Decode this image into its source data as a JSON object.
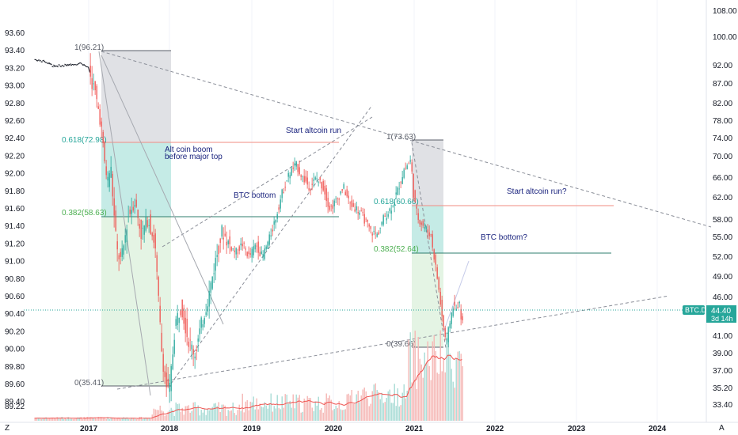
{
  "chart_data": {
    "type": "candlestick",
    "symbol": "BTC.D",
    "last_price": "44.40",
    "countdown": "3d 14h",
    "left_axis_ticks": [
      "93.60",
      "93.40",
      "93.20",
      "93.00",
      "92.80",
      "92.60",
      "92.40",
      "92.20",
      "92.00",
      "91.80",
      "91.60",
      "91.40",
      "91.20",
      "91.00",
      "90.80",
      "90.60",
      "90.40",
      "90.20",
      "90.00",
      "89.80",
      "89.60",
      "89.40",
      "89.22"
    ],
    "right_axis_ticks": [
      "108.00",
      "100.00",
      "92.00",
      "87.00",
      "82.00",
      "78.00",
      "74.00",
      "70.00",
      "66.00",
      "62.00",
      "58.00",
      "55.00",
      "52.00",
      "49.00",
      "46.00",
      "41.00",
      "39.00",
      "37.00",
      "35.20",
      "33.40"
    ],
    "x_ticks": [
      "2017",
      "2018",
      "2019",
      "2020",
      "2021",
      "2022",
      "2023",
      "2024"
    ],
    "axis_corner_left": "Z",
    "axis_corner_right": "A",
    "price_series": [
      [
        "2016-05-01",
        93.3
      ],
      [
        "2016-06-15",
        93.28
      ],
      [
        "2016-08-01",
        93.22
      ],
      [
        "2016-10-01",
        93.24
      ],
      [
        "2016-12-01",
        93.26
      ],
      [
        "2017-01-01",
        93.2
      ],
      [
        "2017-02-01",
        92.95
      ],
      [
        "2017-03-01",
        92.6
      ],
      [
        "2017-03-15",
        92.2
      ],
      [
        "2017-04-01",
        91.9
      ],
      [
        "2017-04-15",
        92.1
      ],
      [
        "2017-05-01",
        91.5
      ],
      [
        "2017-05-15",
        91.1
      ],
      [
        "2017-06-01",
        91.0
      ],
      [
        "2017-06-15",
        91.2
      ],
      [
        "2017-07-01",
        91.5
      ],
      [
        "2017-08-01",
        91.7
      ],
      [
        "2017-09-01",
        91.3
      ],
      [
        "2017-10-01",
        91.5
      ],
      [
        "2017-11-01",
        91.2
      ],
      [
        "2017-12-01",
        90.0
      ],
      [
        "2017-12-20",
        89.6
      ],
      [
        "2018-01-05",
        89.5
      ],
      [
        "2018-02-01",
        90.3
      ],
      [
        "2018-03-01",
        90.5
      ],
      [
        "2018-04-01",
        90.1
      ],
      [
        "2018-05-01",
        89.95
      ],
      [
        "2018-06-01",
        90.3
      ],
      [
        "2018-07-01",
        90.6
      ],
      [
        "2018-08-01",
        91.0
      ],
      [
        "2018-09-01",
        91.35
      ],
      [
        "2018-10-01",
        91.2
      ],
      [
        "2018-11-01",
        91.1
      ],
      [
        "2018-12-01",
        91.2
      ],
      [
        "2019-01-01",
        91.05
      ],
      [
        "2019-02-01",
        91.2
      ],
      [
        "2019-03-01",
        91.05
      ],
      [
        "2019-04-01",
        91.25
      ],
      [
        "2019-05-01",
        91.5
      ],
      [
        "2019-06-01",
        91.8
      ],
      [
        "2019-07-01",
        92.0
      ],
      [
        "2019-08-01",
        92.1
      ],
      [
        "2019-09-01",
        91.95
      ],
      [
        "2019-10-01",
        91.85
      ],
      [
        "2019-11-01",
        91.95
      ],
      [
        "2019-12-01",
        91.85
      ],
      [
        "2020-01-01",
        91.6
      ],
      [
        "2020-02-01",
        91.7
      ],
      [
        "2020-03-01",
        91.85
      ],
      [
        "2020-04-01",
        91.65
      ],
      [
        "2020-05-01",
        91.6
      ],
      [
        "2020-06-01",
        91.5
      ],
      [
        "2020-07-01",
        91.35
      ],
      [
        "2020-08-01",
        91.3
      ],
      [
        "2020-09-01",
        91.5
      ],
      [
        "2020-10-01",
        91.6
      ],
      [
        "2020-11-01",
        91.8
      ],
      [
        "2020-12-01",
        92.05
      ],
      [
        "2021-01-01",
        92.15
      ],
      [
        "2021-01-15",
        91.7
      ],
      [
        "2021-02-01",
        91.5
      ],
      [
        "2021-03-01",
        91.4
      ],
      [
        "2021-04-01",
        91.3
      ],
      [
        "2021-05-01",
        90.8
      ],
      [
        "2021-05-20",
        90.4
      ],
      [
        "2021-06-10",
        90.05
      ],
      [
        "2021-06-25",
        90.3
      ],
      [
        "2021-07-10",
        90.5
      ],
      [
        "2021-07-25",
        90.45
      ],
      [
        "2021-08-05",
        90.55
      ],
      [
        "2021-08-20",
        90.3
      ]
    ],
    "annotations": {
      "fib_a": {
        "top_label": "1(96.21)",
        "level_618": "0.618(72.98)",
        "level_382": "0.382(58.63)",
        "bottom_label": "0(35.41)"
      },
      "fib_b": {
        "top_label": "1(73.63)",
        "level_618": "0.618(60.66)",
        "level_382": "0.382(52.64)",
        "bottom_label": "0(39.66)"
      },
      "text_alt_coin_boom": [
        "Alt coin boom",
        "before major top"
      ],
      "text_btc_bottom": "BTC bottom",
      "text_start_altcoin_run": "Start altcoin run",
      "text_start_altcoin_run_q": "Start altcoin run?",
      "text_btc_bottom_q": "BTC bottom?"
    },
    "colors": {
      "up": "#26a69a",
      "down": "#ef5350",
      "fib_gray": "#e0e1e5",
      "fib_teal": "#c5ebe6",
      "fib_green": "#e4f4e4",
      "red_line": "#f28b82",
      "teal_line": "#2e7d6e",
      "dark_line": "#5a5e68",
      "badge": "#26a69a",
      "text_navy": "#1a237e"
    }
  }
}
